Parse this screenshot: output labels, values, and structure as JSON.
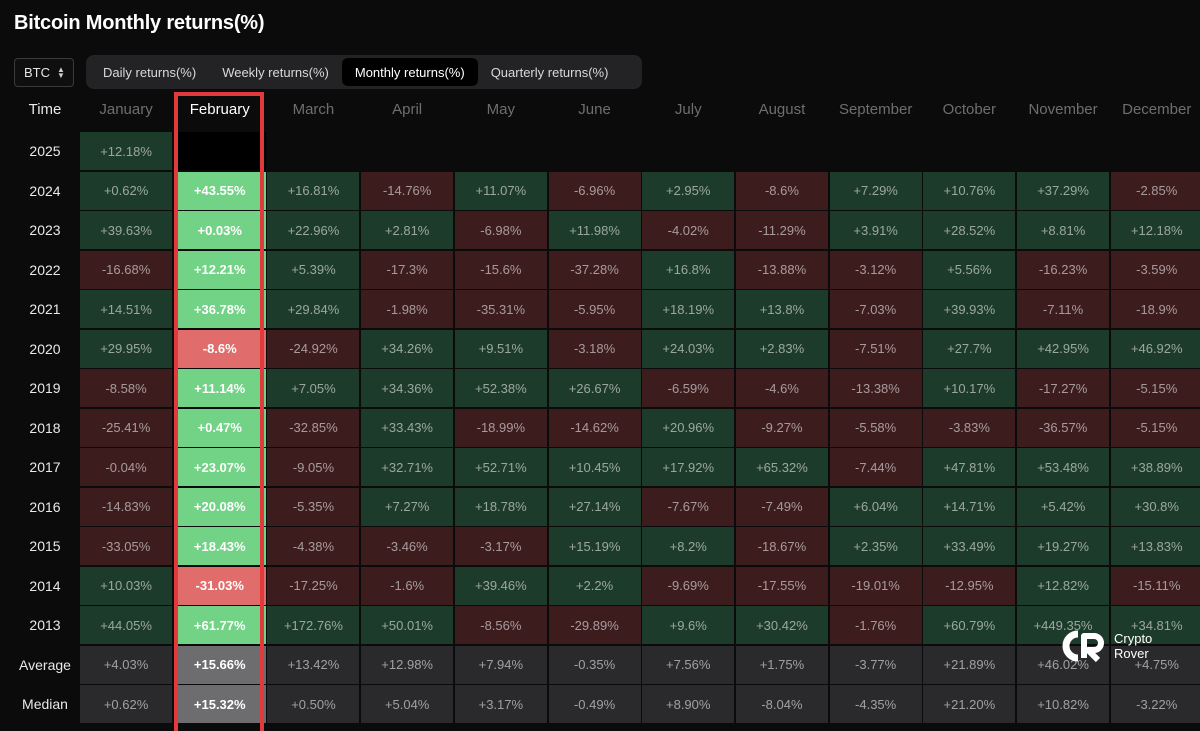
{
  "title": "Bitcoin Monthly returns(%)",
  "asset_select": {
    "value": "BTC"
  },
  "tabs": [
    {
      "label": "Daily returns(%)",
      "active": false
    },
    {
      "label": "Weekly returns(%)",
      "active": false
    },
    {
      "label": "Monthly returns(%)",
      "active": true
    },
    {
      "label": "Quarterly returns(%)",
      "active": false
    }
  ],
  "table": {
    "time_header": "Time",
    "months": [
      "January",
      "February",
      "March",
      "April",
      "May",
      "June",
      "July",
      "August",
      "September",
      "October",
      "November",
      "December"
    ],
    "highlighted_month": "February",
    "rows": [
      {
        "label": "2025",
        "values": [
          "+12.18%",
          "",
          "",
          "",
          "",
          "",
          "",
          "",
          "",
          "",
          "",
          ""
        ]
      },
      {
        "label": "2024",
        "values": [
          "+0.62%",
          "+43.55%",
          "+16.81%",
          "-14.76%",
          "+11.07%",
          "-6.96%",
          "+2.95%",
          "-8.6%",
          "+7.29%",
          "+10.76%",
          "+37.29%",
          "-2.85%"
        ]
      },
      {
        "label": "2023",
        "values": [
          "+39.63%",
          "+0.03%",
          "+22.96%",
          "+2.81%",
          "-6.98%",
          "+11.98%",
          "-4.02%",
          "-11.29%",
          "+3.91%",
          "+28.52%",
          "+8.81%",
          "+12.18%"
        ]
      },
      {
        "label": "2022",
        "values": [
          "-16.68%",
          "+12.21%",
          "+5.39%",
          "-17.3%",
          "-15.6%",
          "-37.28%",
          "+16.8%",
          "-13.88%",
          "-3.12%",
          "+5.56%",
          "-16.23%",
          "-3.59%"
        ]
      },
      {
        "label": "2021",
        "values": [
          "+14.51%",
          "+36.78%",
          "+29.84%",
          "-1.98%",
          "-35.31%",
          "-5.95%",
          "+18.19%",
          "+13.8%",
          "-7.03%",
          "+39.93%",
          "-7.11%",
          "-18.9%"
        ]
      },
      {
        "label": "2020",
        "values": [
          "+29.95%",
          "-8.6%",
          "-24.92%",
          "+34.26%",
          "+9.51%",
          "-3.18%",
          "+24.03%",
          "+2.83%",
          "-7.51%",
          "+27.7%",
          "+42.95%",
          "+46.92%"
        ]
      },
      {
        "label": "2019",
        "values": [
          "-8.58%",
          "+11.14%",
          "+7.05%",
          "+34.36%",
          "+52.38%",
          "+26.67%",
          "-6.59%",
          "-4.6%",
          "-13.38%",
          "+10.17%",
          "-17.27%",
          "-5.15%"
        ]
      },
      {
        "label": "2018",
        "values": [
          "-25.41%",
          "+0.47%",
          "-32.85%",
          "+33.43%",
          "-18.99%",
          "-14.62%",
          "+20.96%",
          "-9.27%",
          "-5.58%",
          "-3.83%",
          "-36.57%",
          "-5.15%"
        ]
      },
      {
        "label": "2017",
        "values": [
          "-0.04%",
          "+23.07%",
          "-9.05%",
          "+32.71%",
          "+52.71%",
          "+10.45%",
          "+17.92%",
          "+65.32%",
          "-7.44%",
          "+47.81%",
          "+53.48%",
          "+38.89%"
        ]
      },
      {
        "label": "2016",
        "values": [
          "-14.83%",
          "+20.08%",
          "-5.35%",
          "+7.27%",
          "+18.78%",
          "+27.14%",
          "-7.67%",
          "-7.49%",
          "+6.04%",
          "+14.71%",
          "+5.42%",
          "+30.8%"
        ]
      },
      {
        "label": "2015",
        "values": [
          "-33.05%",
          "+18.43%",
          "-4.38%",
          "-3.46%",
          "-3.17%",
          "+15.19%",
          "+8.2%",
          "-18.67%",
          "+2.35%",
          "+33.49%",
          "+19.27%",
          "+13.83%"
        ]
      },
      {
        "label": "2014",
        "values": [
          "+10.03%",
          "-31.03%",
          "-17.25%",
          "-1.6%",
          "+39.46%",
          "+2.2%",
          "-9.69%",
          "-17.55%",
          "-19.01%",
          "-12.95%",
          "+12.82%",
          "-15.11%"
        ]
      },
      {
        "label": "2013",
        "values": [
          "+44.05%",
          "+61.77%",
          "+172.76%",
          "+50.01%",
          "-8.56%",
          "-29.89%",
          "+9.6%",
          "+30.42%",
          "-1.76%",
          "+60.79%",
          "+449.35%",
          "+34.81%"
        ]
      },
      {
        "label": "Average",
        "summary": true,
        "values": [
          "+4.03%",
          "+15.66%",
          "+13.42%",
          "+12.98%",
          "+7.94%",
          "-0.35%",
          "+7.56%",
          "+1.75%",
          "-3.77%",
          "+21.89%",
          "+46.02%",
          "+4.75%"
        ]
      },
      {
        "label": "Median",
        "summary": true,
        "values": [
          "+0.62%",
          "+15.32%",
          "+0.50%",
          "+5.04%",
          "+3.17%",
          "-0.49%",
          "+8.90%",
          "-8.04%",
          "-4.35%",
          "+21.20%",
          "+10.82%",
          "-3.22%"
        ]
      }
    ]
  },
  "watermark": {
    "line1": "Crypto",
    "line2": "Rover"
  },
  "colors": {
    "positive": "#1d3b2a",
    "negative": "#3d1c1d",
    "summary": "#2a2a2c",
    "highlight_positive": "#72d285",
    "highlight_negative": "#e06c6c",
    "highlight_summary": "#6d6d70",
    "highlight_border": "#e03a3d"
  }
}
